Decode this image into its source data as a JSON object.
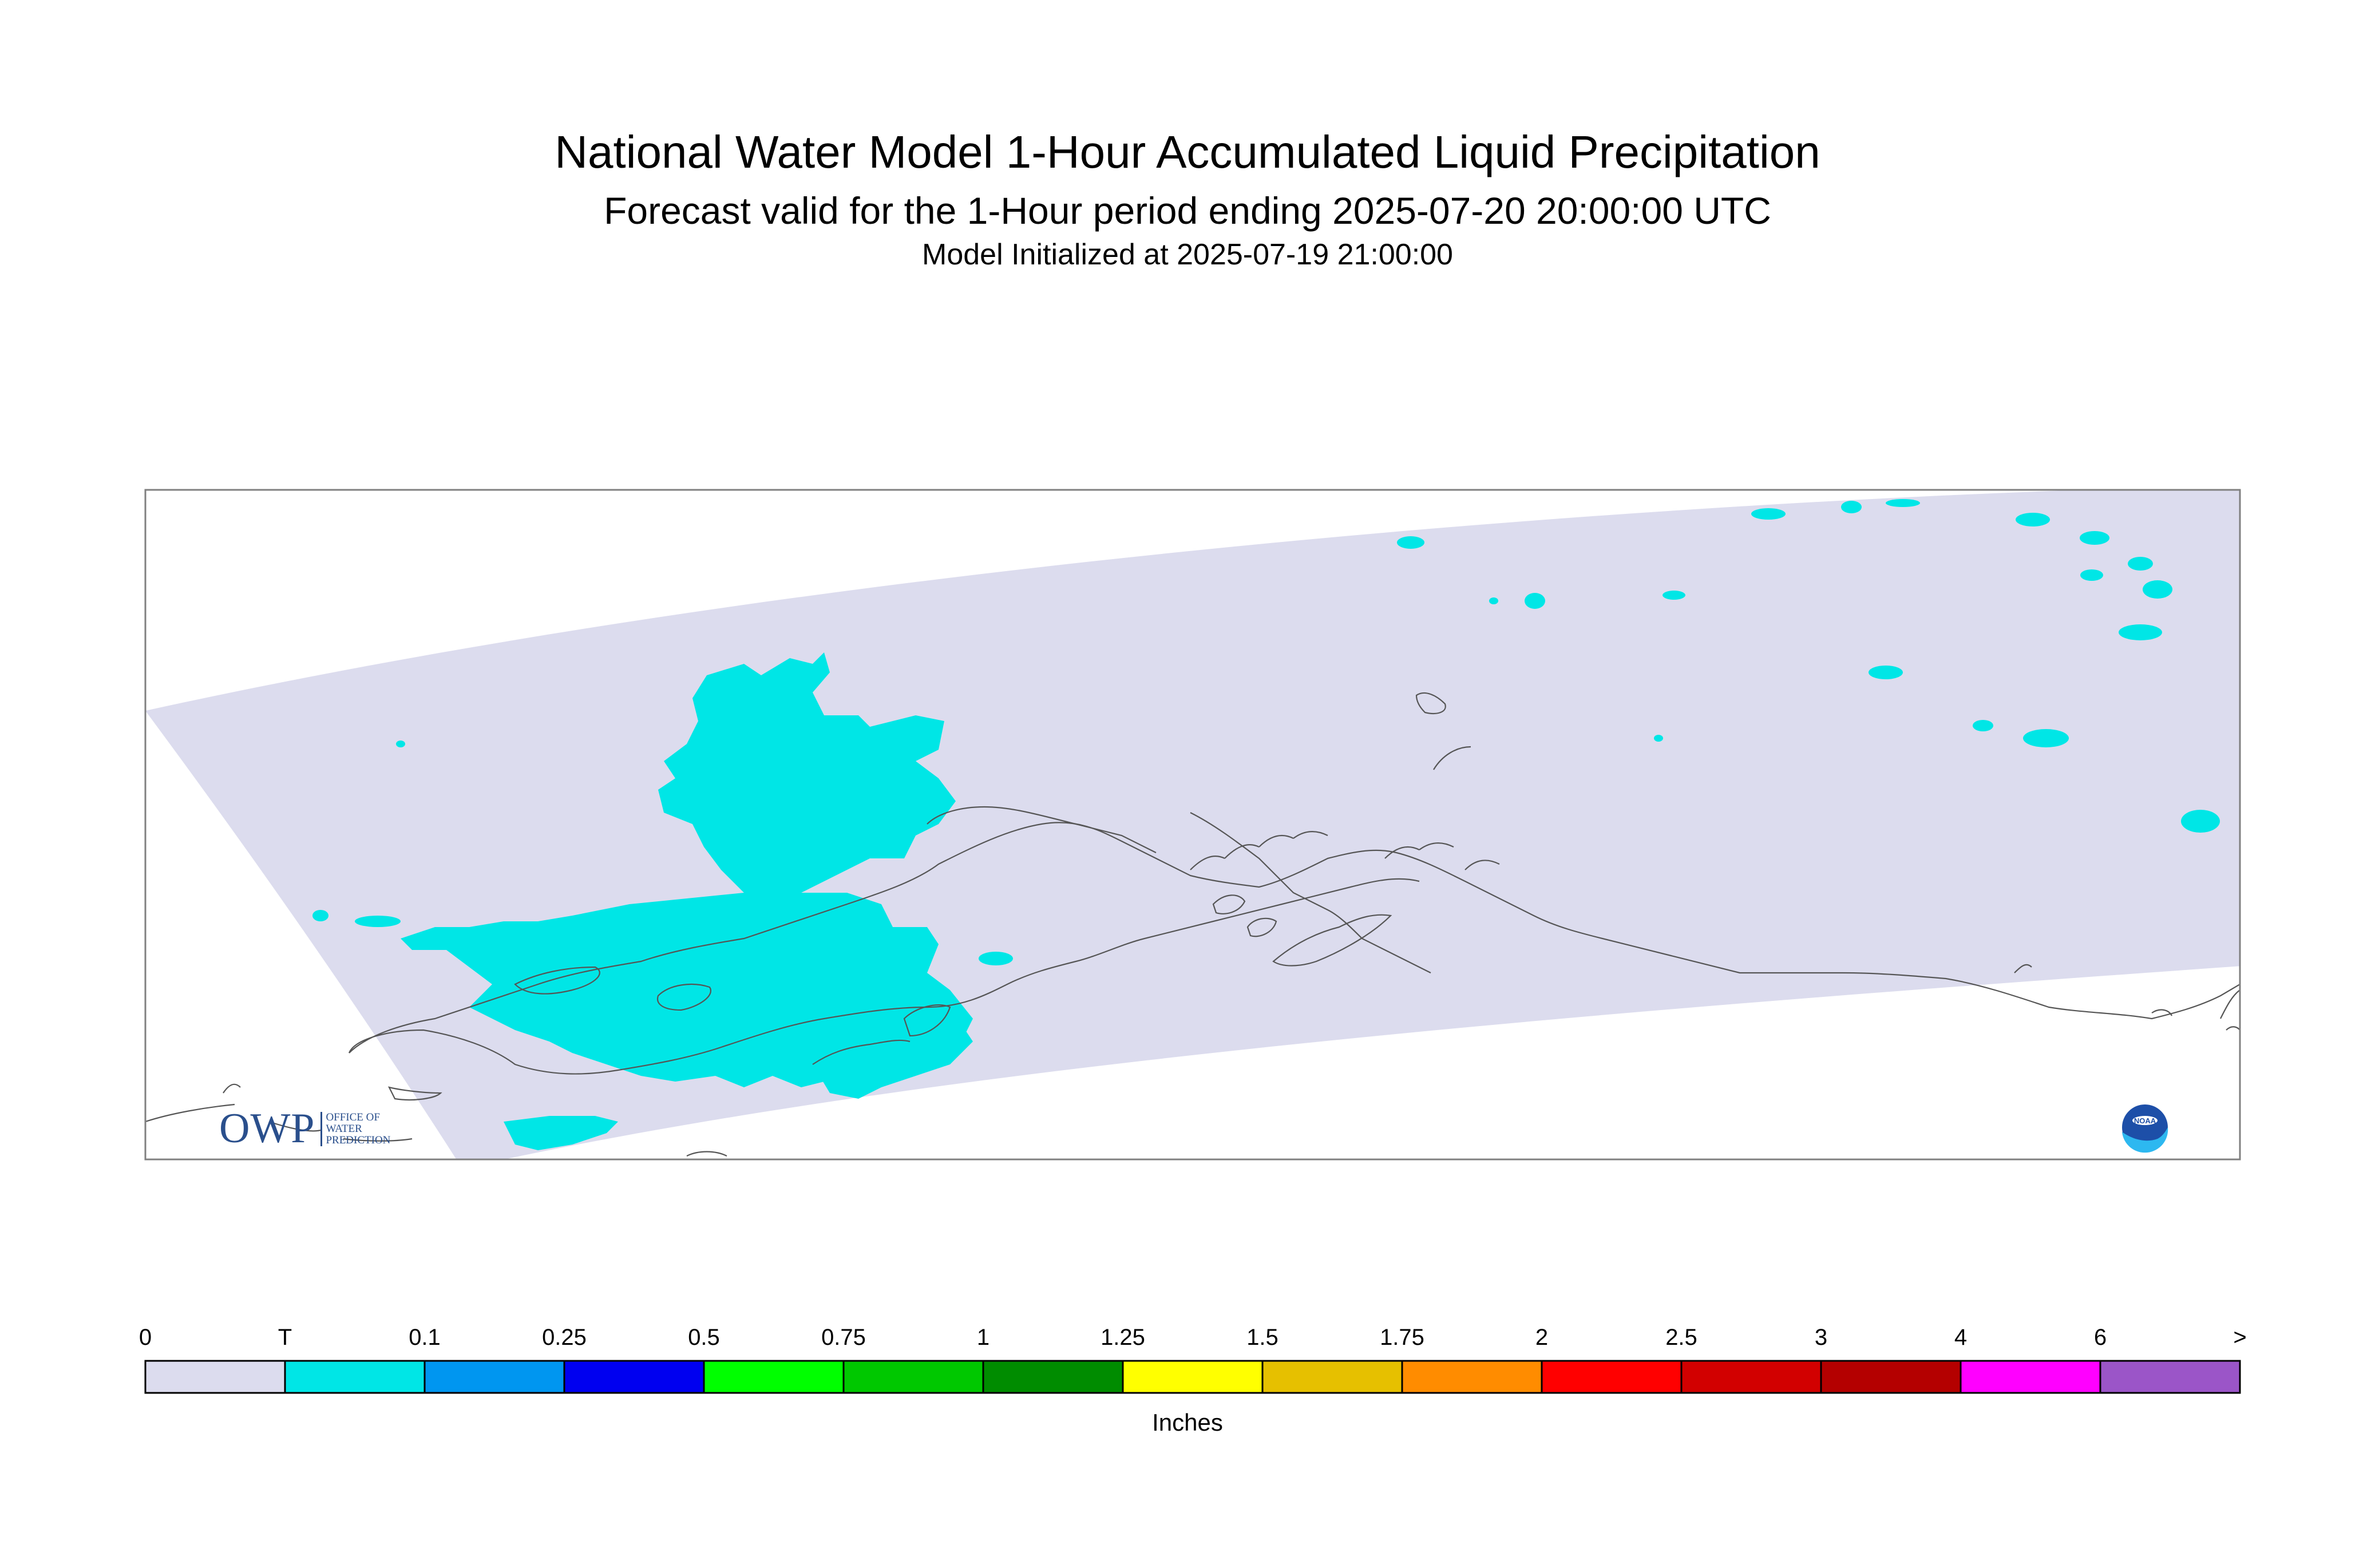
{
  "title": "National Water Model 1-Hour Accumulated Liquid Precipitation",
  "subtitle": "Forecast valid for the 1-Hour period ending 2025-07-20 20:00:00 UTC",
  "init_line": "Model Initialized at 2025-07-19 21:00:00",
  "logos": {
    "owp_letters": "OWP",
    "owp_sub": [
      "OFFICE OF",
      "WATER",
      "PREDICTION"
    ],
    "noaa": "NOAA"
  },
  "legend": {
    "unit": "Inches",
    "labels": [
      "0",
      "T",
      "0.1",
      "0.25",
      "0.5",
      "0.75",
      "1",
      "1.25",
      "1.5",
      "1.75",
      "2",
      "2.5",
      "3",
      "4",
      "6",
      ">"
    ],
    "colors": [
      "#dcdcee",
      "#00e6e6",
      "#0096f0",
      "#0000f0",
      "#00ff00",
      "#00c800",
      "#008c00",
      "#ffff00",
      "#e6c000",
      "#ff8c00",
      "#ff0000",
      "#d20000",
      "#b40000",
      "#ff00ff",
      "#9b55c8"
    ]
  },
  "map": {
    "domain_color": "#dcdcee",
    "trace_color": "#00e6e6",
    "coast_color": "#555555"
  }
}
